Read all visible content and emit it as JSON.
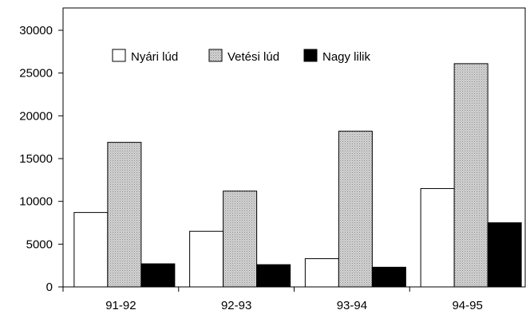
{
  "chart_data": {
    "type": "bar",
    "categories": [
      "91-92",
      "92-93",
      "93-94",
      "94-95"
    ],
    "series": [
      {
        "name": "Nyári lúd",
        "values": [
          8700,
          6500,
          3300,
          11500
        ],
        "fill": "#ffffff",
        "pattern": "none"
      },
      {
        "name": "Vetési lúd",
        "values": [
          16900,
          11200,
          18200,
          26100
        ],
        "fill": "#c8c8c8",
        "pattern": "dots"
      },
      {
        "name": "Nagy lilik",
        "values": [
          2700,
          2600,
          2300,
          7500
        ],
        "fill": "#000000",
        "pattern": "none"
      }
    ],
    "yticks": [
      "0",
      "5000",
      "10000",
      "15000",
      "20000",
      "25000",
      "30000"
    ],
    "ylim": [
      0,
      30000
    ],
    "grid": false,
    "legend_position": "top"
  }
}
